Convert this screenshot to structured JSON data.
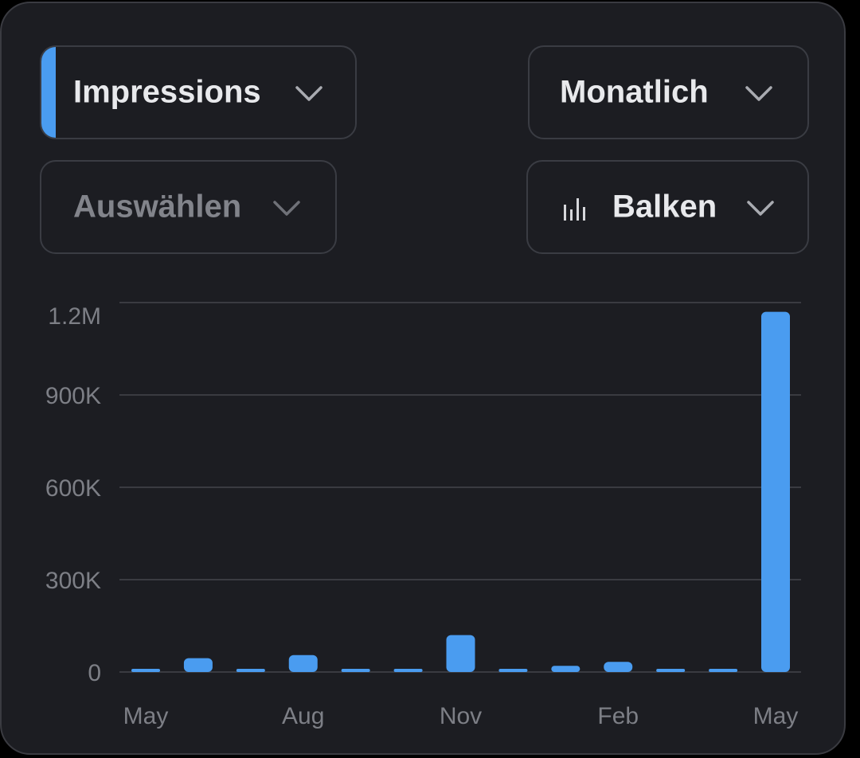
{
  "controls": {
    "metric": {
      "label": "Impressions",
      "accent_color": "#4a9cf0"
    },
    "period": {
      "label": "Monatlich"
    },
    "select": {
      "label": "Auswählen"
    },
    "chart_type": {
      "label": "Balken",
      "icon": "bar-chart-icon"
    }
  },
  "chart_data": {
    "type": "bar",
    "title": "",
    "xlabel": "",
    "ylabel": "",
    "ylim": [
      0,
      1200000
    ],
    "yticks": [
      0,
      300000,
      600000,
      900000,
      1200000
    ],
    "ytick_labels": [
      "0",
      "300K",
      "600K",
      "900K",
      "1.2M"
    ],
    "x_tick_labels": [
      {
        "index": 0,
        "label": "May"
      },
      {
        "index": 3,
        "label": "Aug"
      },
      {
        "index": 6,
        "label": "Nov"
      },
      {
        "index": 9,
        "label": "Feb"
      },
      {
        "index": 12,
        "label": "May"
      }
    ],
    "values": [
      3000,
      45000,
      3000,
      55000,
      3000,
      3000,
      120000,
      3000,
      20000,
      33000,
      3000,
      3000,
      1170000
    ],
    "bar_color": "#4a9cf0",
    "grid": true,
    "legend": "none"
  }
}
